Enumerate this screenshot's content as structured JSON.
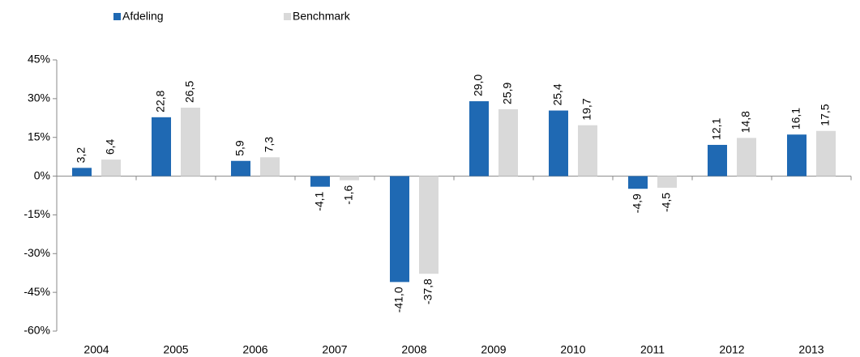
{
  "chart_data": {
    "type": "bar",
    "categories": [
      "2004",
      "2005",
      "2006",
      "2007",
      "2008",
      "2009",
      "2010",
      "2011",
      "2012",
      "2013"
    ],
    "series": [
      {
        "name": "Afdeling",
        "color": "#1f69b3",
        "values": [
          3.2,
          22.8,
          5.9,
          -4.1,
          -41.0,
          29.0,
          25.4,
          -4.9,
          12.1,
          16.1
        ],
        "value_labels": [
          "3,2",
          "22,8",
          "5,9",
          "-4,1",
          "-41,0",
          "29,0",
          "25,4",
          "-4,9",
          "12,1",
          "16,1"
        ]
      },
      {
        "name": "Benchmark",
        "color": "#d9d9d9",
        "values": [
          6.4,
          26.5,
          7.3,
          -1.6,
          -37.8,
          25.9,
          19.7,
          -4.5,
          14.8,
          17.5
        ],
        "value_labels": [
          "6,4",
          "26,5",
          "7,3",
          "-1,6",
          "-37,8",
          "25,9",
          "19,7",
          "-4,5",
          "14,8",
          "17,5"
        ]
      }
    ],
    "ylim": [
      -60,
      45
    ],
    "yticks": [
      {
        "value": -60,
        "label": "-60%"
      },
      {
        "value": -45,
        "label": "-45%"
      },
      {
        "value": -30,
        "label": "-30%"
      },
      {
        "value": -15,
        "label": "-15%"
      },
      {
        "value": 0,
        "label": "0%"
      },
      {
        "value": 15,
        "label": "15%"
      },
      {
        "value": 30,
        "label": "30%"
      },
      {
        "value": 45,
        "label": "45%"
      }
    ],
    "grid": false
  }
}
